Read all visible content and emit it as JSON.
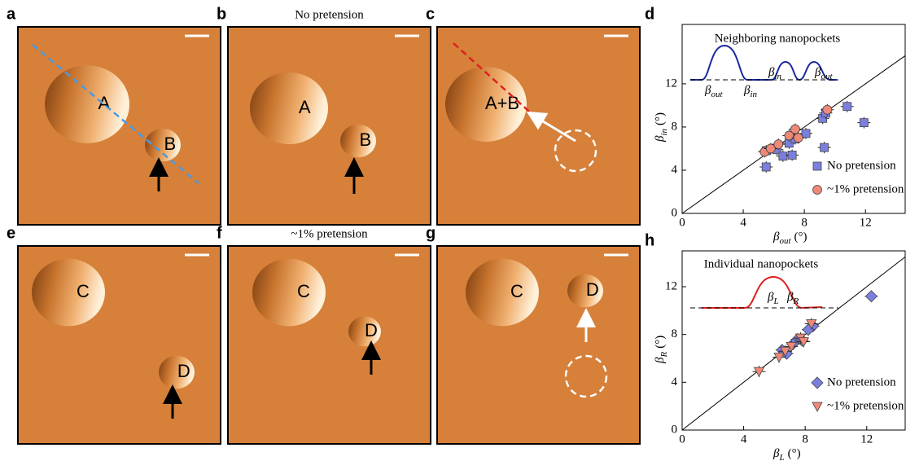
{
  "panels": [
    {
      "letter": "a",
      "labels": [
        "A",
        "B"
      ]
    },
    {
      "letter": "b",
      "title": "No pretension",
      "labels": [
        "A",
        "B"
      ]
    },
    {
      "letter": "c",
      "labels": [
        "A+B"
      ]
    },
    {
      "letter": "e",
      "labels": [
        "C",
        "D"
      ]
    },
    {
      "letter": "f",
      "title": "~1% pretension",
      "labels": [
        "C",
        "D"
      ]
    },
    {
      "letter": "g",
      "labels": [
        "C",
        "D"
      ]
    }
  ],
  "chart_data": [
    {
      "type": "scatter",
      "panel": "d",
      "inset_title": "Neighboring nanopockets",
      "inset_labels": [
        {
          "symbol": "β",
          "sub": "out"
        },
        {
          "symbol": "β",
          "sub": "in"
        },
        {
          "symbol": "β",
          "sub": "in"
        },
        {
          "symbol": "β",
          "sub": "out"
        }
      ],
      "xlabel": {
        "symbol": "β",
        "sub": "out",
        "unit": "(°)"
      },
      "ylabel": {
        "symbol": "β",
        "sub": "in",
        "unit": "(°)"
      },
      "xlim": [
        0,
        14.6
      ],
      "ylim": [
        0,
        17.5
      ],
      "xticks": [
        0,
        4,
        8,
        12
      ],
      "yticks": [
        0,
        4,
        8,
        12
      ],
      "diagonal": true,
      "series": [
        {
          "name": "No pretension",
          "color": "#7b7fe0",
          "marker": "square",
          "x": [
            5.5,
            5.5,
            6.2,
            6.6,
            7.2,
            7.0,
            7.4,
            8.1,
            9.3,
            9.2,
            9.4,
            10.8,
            11.9
          ],
          "values": [
            4.3,
            5.8,
            5.9,
            5.3,
            5.4,
            6.5,
            6.9,
            7.4,
            6.1,
            8.8,
            9.3,
            9.9,
            8.4
          ]
        },
        {
          "name": "~1% pretension",
          "color": "#f08878",
          "marker": "circle",
          "x": [
            5.4,
            5.8,
            6.3,
            7.0,
            7.4,
            9.5,
            7.6
          ],
          "values": [
            5.7,
            6.0,
            6.4,
            7.2,
            7.8,
            9.6,
            7.0
          ]
        }
      ]
    },
    {
      "type": "scatter",
      "panel": "h",
      "inset_title": "Individual nanopockets",
      "inset_labels": [
        {
          "symbol": "β",
          "sub": "L"
        },
        {
          "symbol": "β",
          "sub": "R"
        }
      ],
      "xlabel": {
        "symbol": "β",
        "sub": "L",
        "unit": "(°)"
      },
      "ylabel": {
        "symbol": "β",
        "sub": "R",
        "unit": "(°)"
      },
      "xlim": [
        0,
        14.5
      ],
      "ylim": [
        0,
        15
      ],
      "xticks": [
        0,
        4,
        8,
        12
      ],
      "yticks": [
        0,
        4,
        8,
        12
      ],
      "diagonal": true,
      "series": [
        {
          "name": "No pretension",
          "color": "#7b7fe0",
          "marker": "diamond",
          "x": [
            12.3,
            8.5,
            8.2,
            7.5,
            7.2,
            6.5,
            6.8,
            7.8
          ],
          "values": [
            11.2,
            8.7,
            8.4,
            7.6,
            7.2,
            6.7,
            6.4,
            7.5
          ]
        },
        {
          "name": "~1% pretension",
          "color": "#f08878",
          "marker": "triangle",
          "x": [
            5.0,
            6.3,
            7.1,
            7.7,
            8.4,
            7.9,
            6.7
          ],
          "values": [
            4.9,
            6.1,
            7.0,
            7.7,
            8.9,
            7.4,
            6.6
          ]
        }
      ]
    }
  ]
}
